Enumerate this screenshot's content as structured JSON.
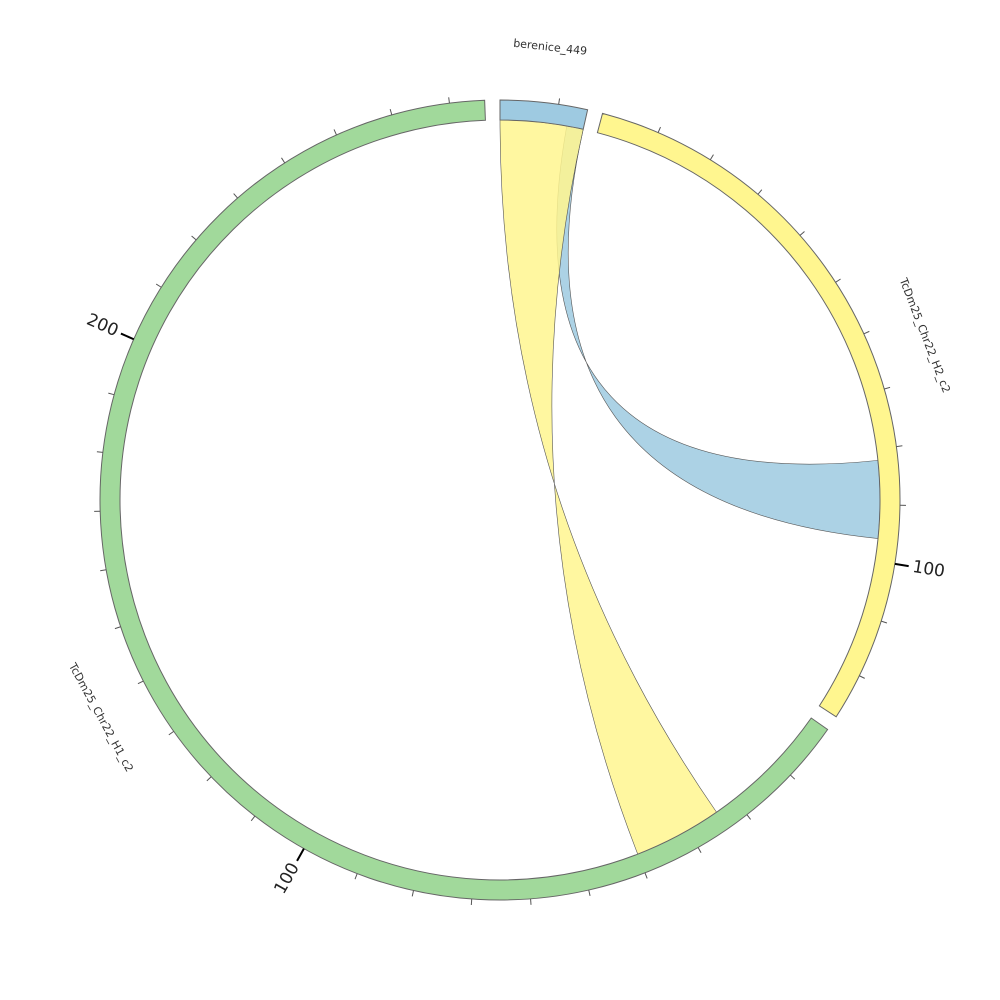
{
  "chart_data": {
    "type": "chord",
    "segments": [
      {
        "name": "berenice_449",
        "color": "#9ecae1",
        "length": 15,
        "minor_ticks": [
          10
        ],
        "major_ticks": []
      },
      {
        "name": "TcDm25_Chr22_H2_c2",
        "color": "#fff68f",
        "length": 128,
        "minor_ticks": [
          10,
          20,
          30,
          40,
          50,
          60,
          70,
          80,
          90,
          110,
          120
        ],
        "major_ticks": [
          100
        ]
      },
      {
        "name": "TcDm25_Chr22_H1_c2",
        "color": "#a1d99b",
        "length": 276,
        "minor_ticks": [
          10,
          20,
          30,
          40,
          50,
          60,
          70,
          80,
          90,
          110,
          120,
          130,
          140,
          150,
          160,
          170,
          180,
          190,
          210,
          220,
          230,
          240,
          250,
          260,
          270
        ],
        "major_ticks": [
          100,
          200
        ]
      }
    ],
    "links": [
      {
        "color": "#9ecae1",
        "source": {
          "segment": 0,
          "start": 12,
          "end": 15
        },
        "target": {
          "segment": 1,
          "start": 82,
          "end": 96
        }
      },
      {
        "color": "#fff68f",
        "source": {
          "segment": 0,
          "start": 0,
          "end": 15
        },
        "target": {
          "segment": 2,
          "start": 24,
          "end": 40
        }
      }
    ]
  }
}
